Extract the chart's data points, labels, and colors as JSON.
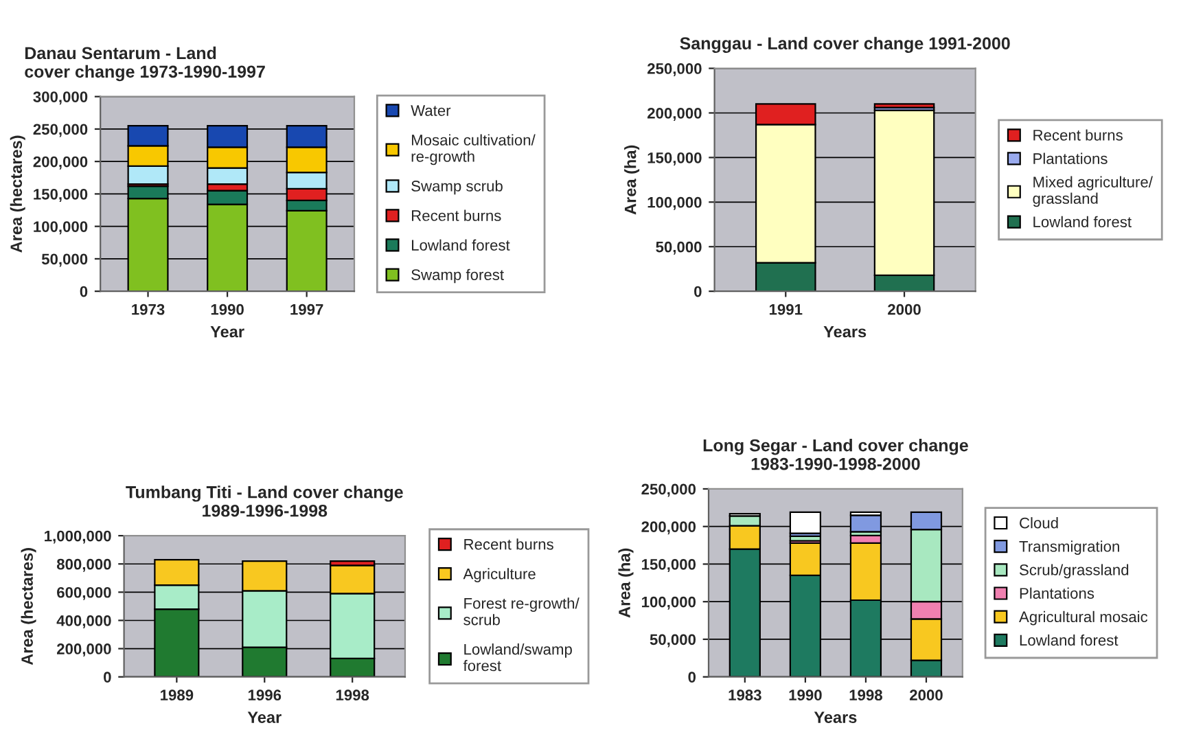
{
  "chart_data": [
    {
      "type": "bar",
      "stacked": true,
      "title": "Danau Sentarum - Land\ncover change 1973-1990-1997",
      "xlabel": "Year",
      "ylabel": "Area (hectares)",
      "categories": [
        "1973",
        "1990",
        "1997"
      ],
      "ylim": [
        0,
        300000
      ],
      "yticks": [
        {
          "value": 0,
          "label": "0"
        },
        {
          "value": 50000,
          "label": "50,000"
        },
        {
          "value": 100000,
          "label": "100,000"
        },
        {
          "value": 150000,
          "label": "150,000"
        },
        {
          "value": 200000,
          "label": "200,000"
        },
        {
          "value": 250000,
          "label": "250,000"
        },
        {
          "value": 300000,
          "label": "300,000"
        }
      ],
      "grid": "y",
      "legend": "right",
      "series": [
        {
          "name": "Swamp forest",
          "color": "#80c020",
          "values": [
            143000,
            134000,
            124000
          ]
        },
        {
          "name": "Lowland forest",
          "color": "#1a7a5a",
          "values": [
            19000,
            21000,
            16000
          ]
        },
        {
          "name": "Recent burns",
          "color": "#e02020",
          "values": [
            3000,
            10000,
            18000
          ]
        },
        {
          "name": "Swamp scrub",
          "color": "#b0e8f8",
          "values": [
            28000,
            25000,
            25000
          ]
        },
        {
          "name": "Mosaic cultivation/\nre-growth",
          "color": "#f8c800",
          "values": [
            31000,
            32000,
            39000
          ]
        },
        {
          "name": "Water",
          "color": "#1848b0",
          "values": [
            31000,
            33000,
            33000
          ]
        }
      ]
    },
    {
      "type": "bar",
      "stacked": true,
      "title": "Sanggau - Land cover change 1991-2000",
      "xlabel": "Years",
      "ylabel": "Area (ha)",
      "categories": [
        "1991",
        "2000"
      ],
      "ylim": [
        0,
        250000
      ],
      "yticks": [
        {
          "value": 0,
          "label": "0"
        },
        {
          "value": 50000,
          "label": "50,000"
        },
        {
          "value": 100000,
          "label": "100,000"
        },
        {
          "value": 150000,
          "label": "150,000"
        },
        {
          "value": 200000,
          "label": "200,000"
        },
        {
          "value": 250000,
          "label": "250,000"
        }
      ],
      "grid": "y",
      "legend": "right",
      "series": [
        {
          "name": "Lowland forest",
          "color": "#207050",
          "values": [
            32000,
            18000
          ]
        },
        {
          "name": "Mixed agriculture/\ngrassland",
          "color": "#ffffc0",
          "values": [
            155000,
            185000
          ]
        },
        {
          "name": "Plantations",
          "color": "#99aaee",
          "values": [
            null,
            3000
          ]
        },
        {
          "name": "Recent burns",
          "color": "#e02020",
          "values": [
            23000,
            4000
          ]
        }
      ]
    },
    {
      "type": "bar",
      "stacked": true,
      "title": "Tumbang Titi - Land cover change\n1989-1996-1998",
      "xlabel": "Year",
      "ylabel": "Area (hectares)",
      "categories": [
        "1989",
        "1996",
        "1998"
      ],
      "ylim": [
        0,
        1000000
      ],
      "yticks": [
        {
          "value": 0,
          "label": "0"
        },
        {
          "value": 200000,
          "label": "200,000"
        },
        {
          "value": 400000,
          "label": "400,000"
        },
        {
          "value": 600000,
          "label": "600,000"
        },
        {
          "value": 800000,
          "label": "800,000"
        },
        {
          "value": 1000000,
          "label": "1,000,000"
        }
      ],
      "grid": "y",
      "legend": "right",
      "series": [
        {
          "name": "Lowland/swamp\nforest",
          "color": "#207a30",
          "values": [
            480000,
            210000,
            130000
          ]
        },
        {
          "name": "Forest re-growth/\nscrub",
          "color": "#a8ecc8",
          "values": [
            170000,
            400000,
            460000
          ]
        },
        {
          "name": "Agriculture",
          "color": "#f8c820",
          "values": [
            180000,
            210000,
            200000
          ]
        },
        {
          "name": "Recent burns",
          "color": "#e02020",
          "values": [
            null,
            null,
            30000
          ]
        }
      ]
    },
    {
      "type": "bar",
      "stacked": true,
      "title": "Long Segar - Land cover change\n1983-1990-1998-2000",
      "xlabel": "Years",
      "ylabel": "Area (ha)",
      "categories": [
        "1983",
        "1990",
        "1998",
        "2000"
      ],
      "ylim": [
        0,
        250000
      ],
      "yticks": [
        {
          "value": 0,
          "label": "0"
        },
        {
          "value": 50000,
          "label": "50,000"
        },
        {
          "value": 100000,
          "label": "100,000"
        },
        {
          "value": 150000,
          "label": "150,000"
        },
        {
          "value": 200000,
          "label": "200,000"
        },
        {
          "value": 250000,
          "label": "250,000"
        }
      ],
      "grid": "y",
      "legend": "right",
      "series": [
        {
          "name": "Lowland forest",
          "color": "#1e7a60",
          "values": [
            170000,
            135000,
            102000,
            22000
          ]
        },
        {
          "name": "Agricultural mosaic",
          "color": "#f8c820",
          "values": [
            31000,
            43000,
            76000,
            55000
          ]
        },
        {
          "name": "Plantations",
          "color": "#f080b0",
          "values": [
            null,
            3000,
            10000,
            23000
          ]
        },
        {
          "name": "Scrub/grassland",
          "color": "#a8e8c0",
          "values": [
            13000,
            6000,
            5000,
            96000
          ]
        },
        {
          "name": "Transmigration",
          "color": "#8099e0",
          "values": [
            null,
            4000,
            22000,
            23000
          ]
        },
        {
          "name": "Cloud",
          "color": "#ffffff",
          "values": [
            3000,
            28000,
            4000,
            null
          ]
        }
      ]
    }
  ]
}
